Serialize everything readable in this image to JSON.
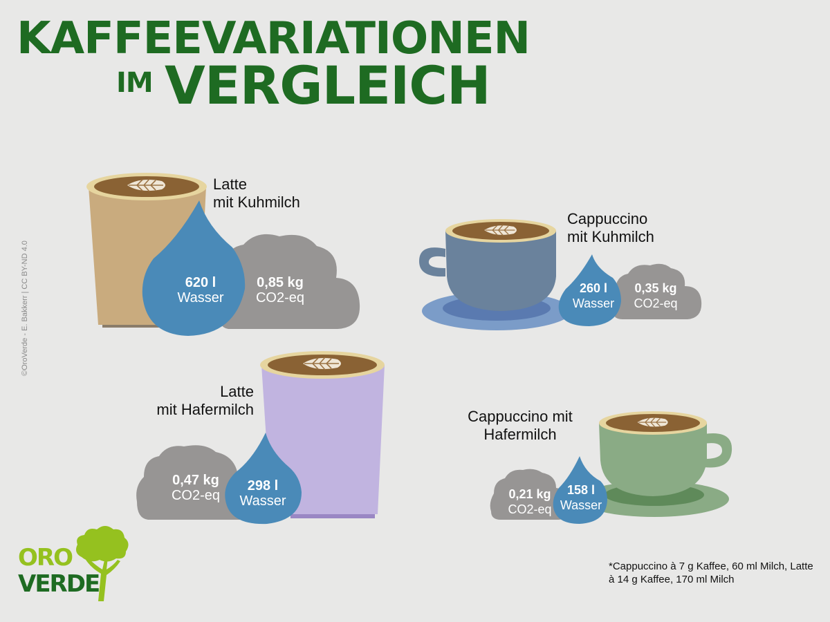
{
  "title": {
    "line1": "KAFFEEVARIATIONEN",
    "line2_small": "IM",
    "line2_big": "VERGLEICH"
  },
  "credit": "©OroVerde - E. Bakkerr | CC BY-ND 4.0",
  "drinks": {
    "latte_kuh": {
      "name1": "Latte",
      "name2": "mit Kuhmilch",
      "water": "620 l",
      "water_unit": "Wasser",
      "co2": "0,85 kg",
      "co2_unit": "CO2-eq"
    },
    "cappuccino_kuh": {
      "name1": "Cappuccino",
      "name2": "mit Kuhmilch",
      "water": "260 l",
      "water_unit": "Wasser",
      "co2": "0,35 kg",
      "co2_unit": "CO2-eq"
    },
    "latte_hafer": {
      "name1": "Latte",
      "name2": "mit Hafermilch",
      "water": "298 l",
      "water_unit": "Wasser",
      "co2": "0,47 kg",
      "co2_unit": "CO2-eq"
    },
    "cappuccino_hafer": {
      "name1": "Cappuccino mit",
      "name2": "Hafermilch",
      "water": "158 l",
      "water_unit": "Wasser",
      "co2": "0,21 kg",
      "co2_unit": "CO2-eq"
    }
  },
  "footnote": "*Cappuccino à 7 g Kaffee, 60 ml Milch, Latte à 14 g Kaffee, 170 ml Milch",
  "logo": {
    "line1": "ORO",
    "line2": "VERDE"
  },
  "colors": {
    "title_green": "#1e6b22",
    "water_blue": "#4a8ab8",
    "cloud_gray": "#979594",
    "latte_cup_beige": "#c9ab7e",
    "cappuccino_cup_blue": "#6a829c",
    "oat_latte_cup_lavender": "#c1b4e0",
    "oat_cappuccino_cup_green": "#8aab85",
    "coffee_brown": "#8a6234",
    "logo_lime": "#95c11f"
  }
}
